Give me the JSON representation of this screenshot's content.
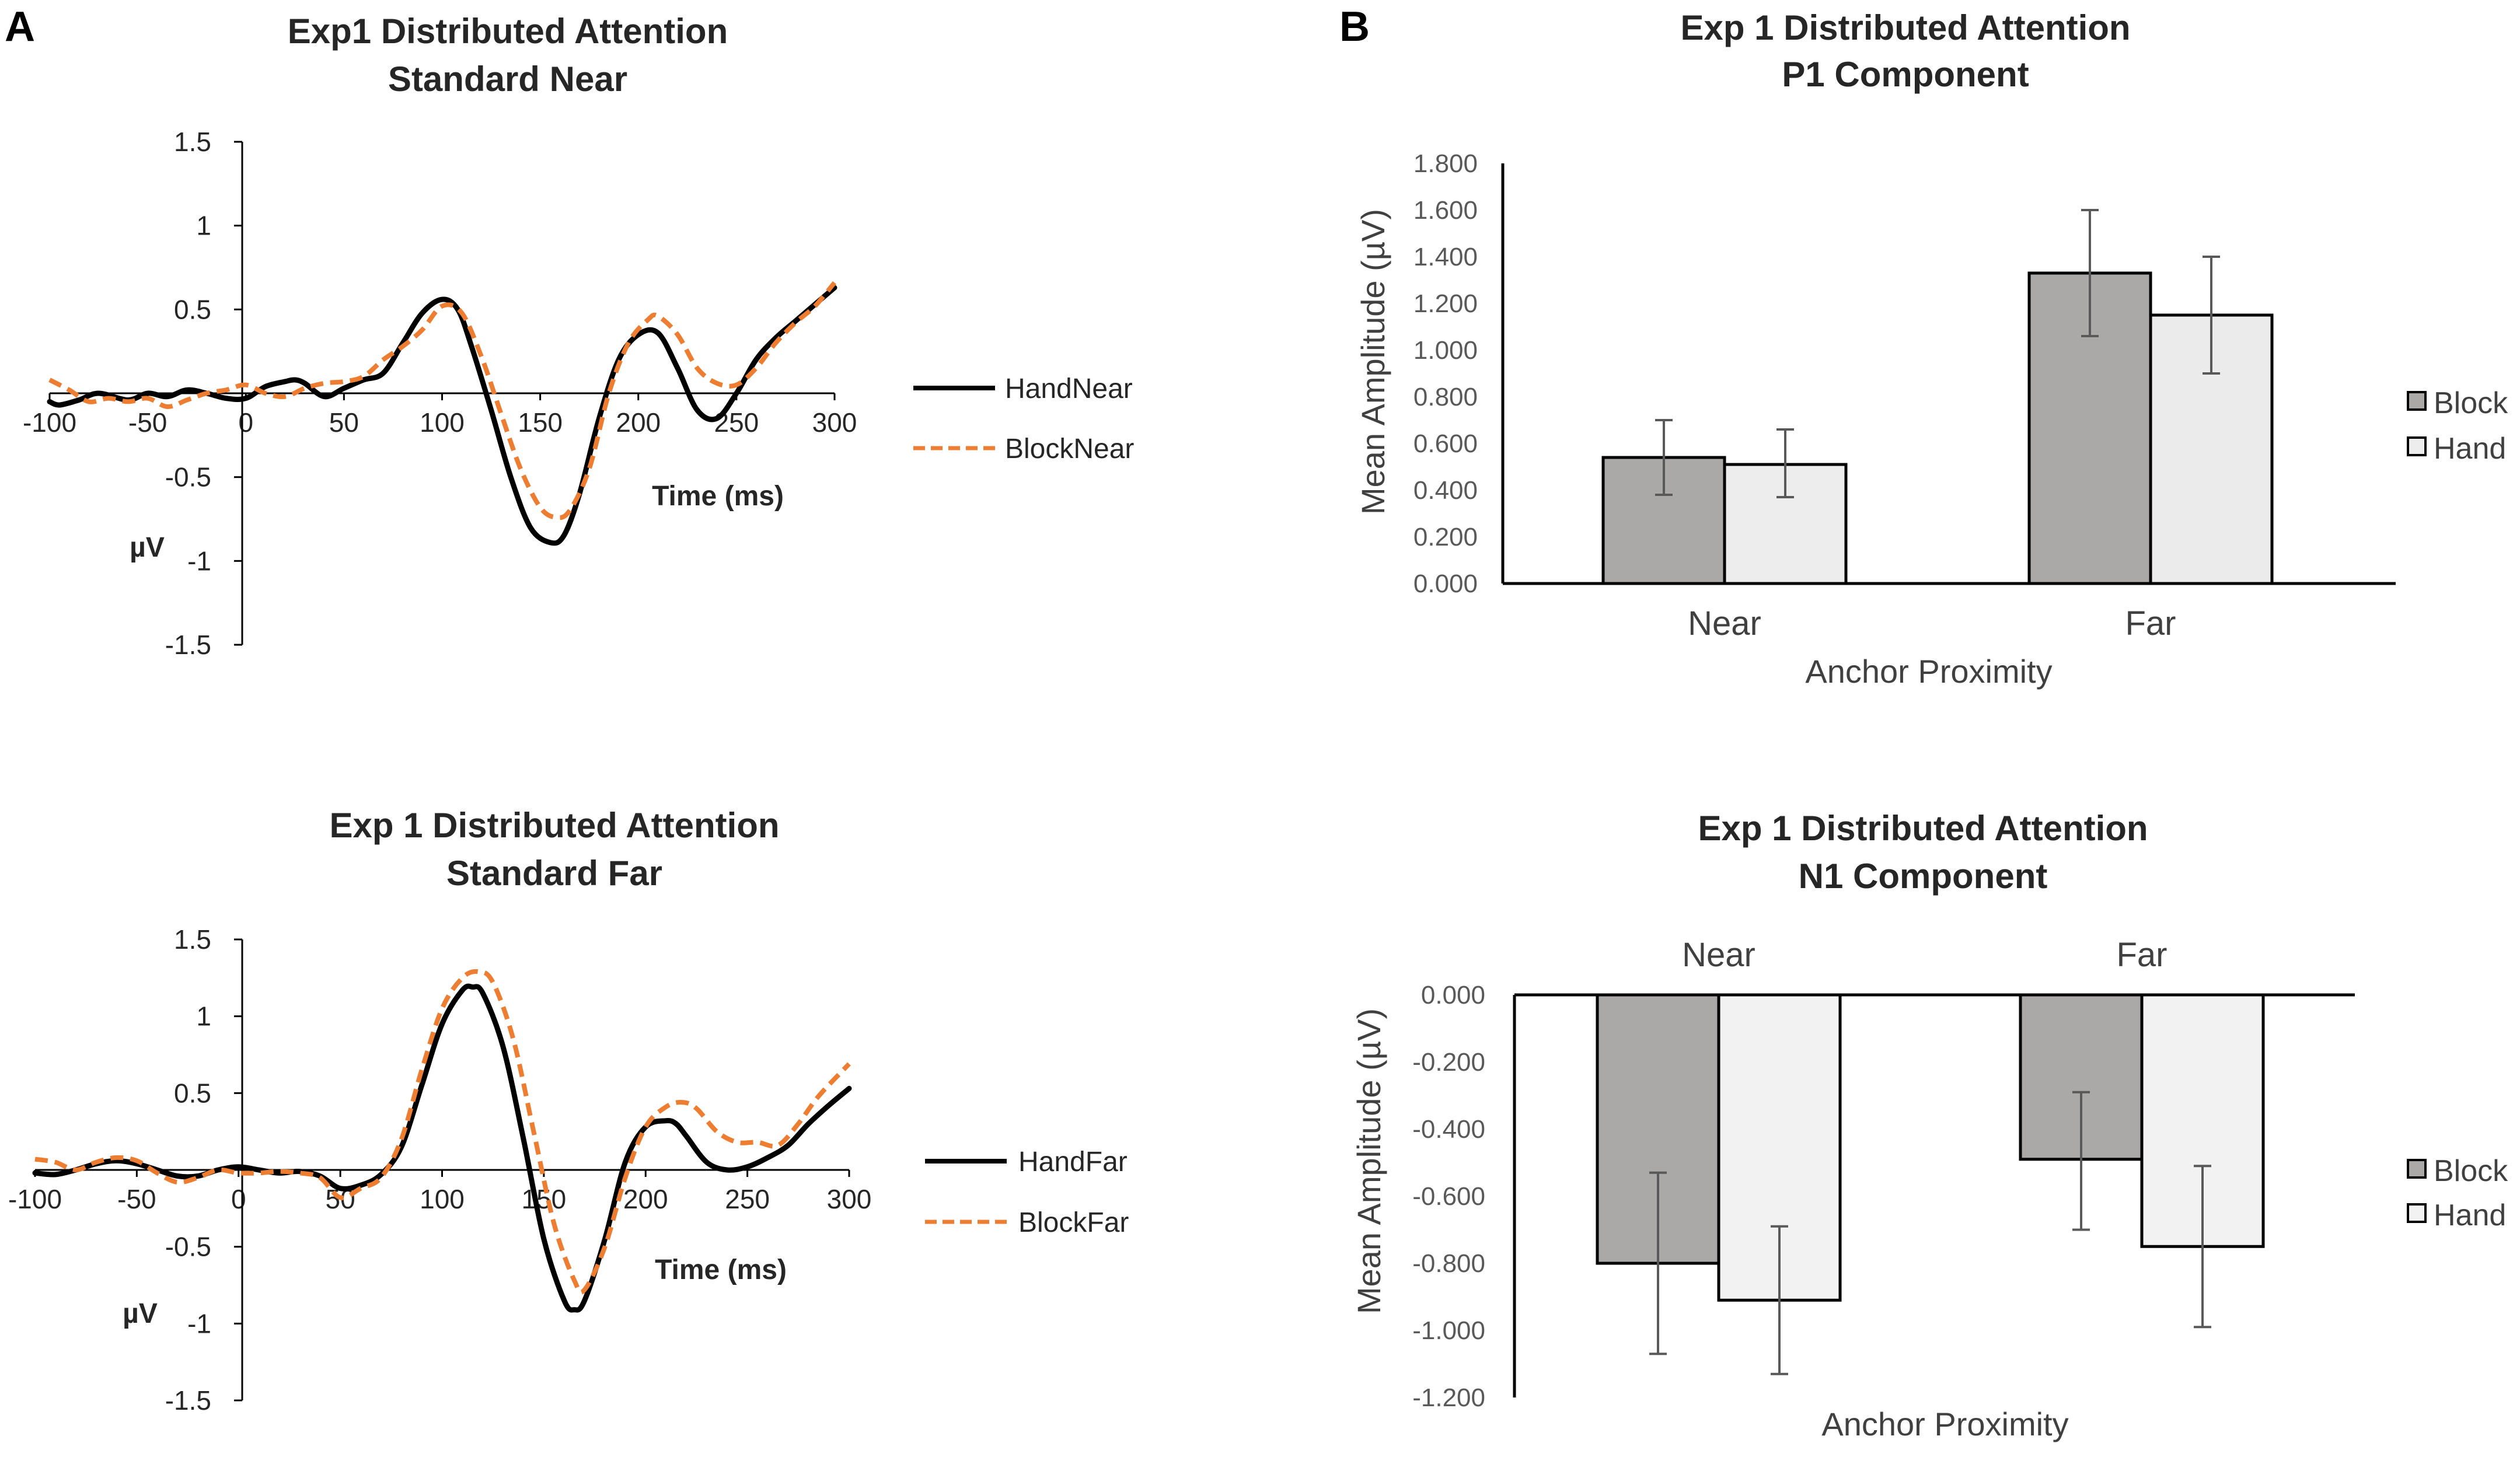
{
  "panels": {
    "a_label": "A",
    "b_label": "B"
  },
  "colors": {
    "hand_line": "#000000",
    "block_line": "#ED7D31",
    "block_bar": "#ABA9A8",
    "hand_bar": "#EDEDED",
    "bar_hand_far_p1": "#EBEBEB",
    "bar_hand_n1": "#F2F2F2",
    "axis": "#000000",
    "error_bar": "#595959"
  },
  "chart_data": [
    {
      "id": "erp_near",
      "type": "line",
      "title": "Exp1 Distributed Attention",
      "subtitle": "Standard Near",
      "xlabel": "Time (ms)",
      "ylabel": "µV",
      "xlim": [
        -100,
        300
      ],
      "ylim": [
        -1.5,
        1.5
      ],
      "x_ticks": [
        "-100",
        "-50",
        "0",
        "50",
        "100",
        "150",
        "200",
        "250",
        "300"
      ],
      "y_ticks": [
        "1.5",
        "1",
        "0.5",
        "0",
        "-0.5",
        "-1",
        "-1.5"
      ],
      "legend": [
        "HandNear",
        "BlockNear"
      ],
      "series": [
        {
          "name": "HandNear",
          "style": "solid",
          "x": [
            -100,
            -95,
            -85,
            -75,
            -60,
            -50,
            -40,
            -30,
            -20,
            -10,
            0,
            10,
            20,
            25,
            30,
            40,
            50,
            60,
            70,
            80,
            90,
            100,
            108,
            115,
            125,
            135,
            145,
            155,
            162,
            170,
            180,
            190,
            200,
            210,
            220,
            230,
            240,
            250,
            260,
            270,
            280,
            290,
            300
          ],
          "y": [
            -0.05,
            -0.07,
            -0.04,
            0.0,
            -0.04,
            0.0,
            -0.02,
            0.02,
            0.0,
            -0.03,
            -0.03,
            0.04,
            0.07,
            0.08,
            0.06,
            -0.02,
            0.03,
            0.08,
            0.12,
            0.3,
            0.48,
            0.56,
            0.5,
            0.28,
            -0.1,
            -0.5,
            -0.8,
            -0.89,
            -0.85,
            -0.6,
            -0.15,
            0.2,
            0.35,
            0.36,
            0.15,
            -0.1,
            -0.15,
            0.0,
            0.2,
            0.33,
            0.43,
            0.53,
            0.63
          ]
        },
        {
          "name": "BlockNear",
          "style": "dashed",
          "x": [
            -100,
            -90,
            -80,
            -70,
            -60,
            -50,
            -40,
            -30,
            -20,
            -10,
            0,
            10,
            20,
            30,
            40,
            50,
            60,
            70,
            80,
            90,
            100,
            110,
            120,
            130,
            140,
            150,
            158,
            165,
            175,
            185,
            195,
            205,
            210,
            220,
            230,
            240,
            250,
            260,
            270,
            280,
            290,
            300
          ],
          "y": [
            0.08,
            0.02,
            -0.05,
            -0.03,
            -0.05,
            -0.03,
            -0.08,
            -0.04,
            0.0,
            0.02,
            0.05,
            0.0,
            -0.02,
            0.03,
            0.06,
            0.07,
            0.1,
            0.2,
            0.28,
            0.38,
            0.52,
            0.48,
            0.22,
            -0.12,
            -0.45,
            -0.68,
            -0.74,
            -0.7,
            -0.45,
            0.0,
            0.3,
            0.44,
            0.46,
            0.35,
            0.15,
            0.06,
            0.05,
            0.15,
            0.3,
            0.42,
            0.52,
            0.66
          ]
        }
      ]
    },
    {
      "id": "erp_far",
      "type": "line",
      "title": "Exp 1 Distributed Attention",
      "subtitle": "Standard Far",
      "xlabel": "Time (ms)",
      "ylabel": "µV",
      "xlim": [
        -100,
        300
      ],
      "ylim": [
        -1.5,
        1.5
      ],
      "x_ticks": [
        "-100",
        "-50",
        "0",
        "50",
        "100",
        "150",
        "200",
        "250",
        "300"
      ],
      "y_ticks": [
        "1.5",
        "1",
        "0.5",
        "0",
        "-0.5",
        "-1",
        "-1.5"
      ],
      "legend": [
        "HandFar",
        "BlockFar"
      ],
      "series": [
        {
          "name": "HandFar",
          "style": "solid",
          "x": [
            -100,
            -90,
            -80,
            -70,
            -60,
            -50,
            -40,
            -30,
            -20,
            -10,
            0,
            10,
            20,
            30,
            40,
            50,
            60,
            70,
            80,
            90,
            100,
            110,
            115,
            120,
            130,
            140,
            150,
            160,
            165,
            170,
            180,
            190,
            200,
            210,
            215,
            220,
            230,
            240,
            250,
            260,
            270,
            280,
            290,
            300
          ],
          "y": [
            -0.02,
            -0.03,
            0.0,
            0.04,
            0.06,
            0.04,
            0.0,
            -0.04,
            -0.04,
            0.0,
            0.02,
            0.0,
            -0.02,
            -0.01,
            -0.04,
            -0.12,
            -0.1,
            -0.03,
            0.15,
            0.55,
            0.95,
            1.17,
            1.19,
            1.15,
            0.8,
            0.2,
            -0.45,
            -0.85,
            -0.91,
            -0.85,
            -0.45,
            0.05,
            0.28,
            0.32,
            0.3,
            0.22,
            0.05,
            0.0,
            0.02,
            0.08,
            0.16,
            0.3,
            0.42,
            0.53
          ]
        },
        {
          "name": "BlockFar",
          "style": "dashed",
          "x": [
            -100,
            -90,
            -80,
            -70,
            -60,
            -50,
            -40,
            -30,
            -20,
            -10,
            0,
            10,
            20,
            30,
            40,
            50,
            60,
            70,
            80,
            90,
            100,
            110,
            118,
            125,
            135,
            145,
            155,
            165,
            170,
            180,
            190,
            200,
            210,
            218,
            225,
            235,
            245,
            255,
            265,
            275,
            285,
            300
          ],
          "y": [
            0.07,
            0.05,
            0.0,
            0.05,
            0.08,
            0.06,
            -0.02,
            -0.08,
            -0.05,
            0.0,
            -0.02,
            -0.02,
            -0.01,
            -0.02,
            -0.05,
            -0.18,
            -0.12,
            -0.05,
            0.2,
            0.65,
            1.05,
            1.25,
            1.29,
            1.22,
            0.85,
            0.25,
            -0.35,
            -0.72,
            -0.78,
            -0.5,
            -0.05,
            0.28,
            0.41,
            0.44,
            0.4,
            0.25,
            0.18,
            0.18,
            0.16,
            0.3,
            0.48,
            0.69
          ]
        }
      ]
    },
    {
      "id": "p1_bars",
      "type": "bar",
      "title": "Exp 1 Distributed Attention",
      "subtitle": "P1 Component",
      "xlabel": "Anchor Proximity",
      "ylabel": "Mean Amplitude (µV)",
      "ylim": [
        0,
        1.8
      ],
      "y_ticks": [
        "1.800",
        "1.600",
        "1.400",
        "1.200",
        "1.000",
        "0.800",
        "0.600",
        "0.400",
        "0.200",
        "0.000"
      ],
      "categories": [
        "Near",
        "Far"
      ],
      "legend": [
        "Block",
        "Hand"
      ],
      "series": [
        {
          "name": "Block",
          "values": [
            0.54,
            1.33
          ],
          "error_low": [
            0.38,
            1.06
          ],
          "error_high": [
            0.7,
            1.6
          ]
        },
        {
          "name": "Hand",
          "values": [
            0.51,
            1.15
          ],
          "error_low": [
            0.37,
            0.9
          ],
          "error_high": [
            0.66,
            1.4
          ]
        }
      ]
    },
    {
      "id": "n1_bars",
      "type": "bar",
      "title": "Exp 1 Distributed Attention",
      "subtitle": "N1 Component",
      "xlabel": "Anchor Proximity",
      "ylabel": "Mean Amplitude (µV)",
      "ylim": [
        -1.2,
        0
      ],
      "y_ticks": [
        "0.000",
        "-0.200",
        "-0.400",
        "-0.600",
        "-0.800",
        "-1.000",
        "-1.200"
      ],
      "categories": [
        "Near",
        "Far"
      ],
      "legend": [
        "Block",
        "Hand"
      ],
      "series": [
        {
          "name": "Block",
          "values": [
            -0.8,
            -0.49
          ],
          "error_low": [
            -1.07,
            -0.7
          ],
          "error_high": [
            -0.53,
            -0.29
          ]
        },
        {
          "name": "Hand",
          "values": [
            -0.91,
            -0.75
          ],
          "error_low": [
            -1.13,
            -0.99
          ],
          "error_high": [
            -0.69,
            -0.51
          ]
        }
      ]
    }
  ]
}
